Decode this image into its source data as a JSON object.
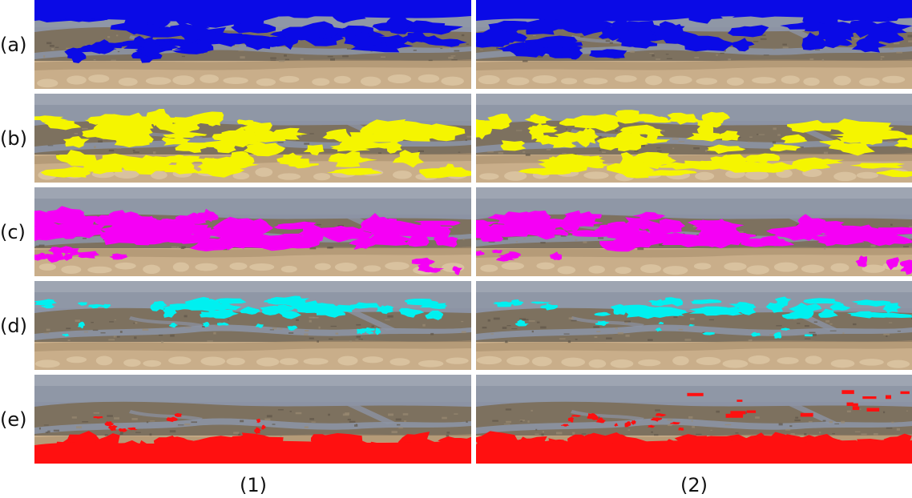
{
  "rows": [
    {
      "label": "(a)",
      "overlay_color": "#0a0ae6"
    },
    {
      "label": "(b)",
      "overlay_color": "#f5f500"
    },
    {
      "label": "(c)",
      "overlay_color": "#f500f5"
    },
    {
      "label": "(d)",
      "overlay_color": "#00f0f0"
    },
    {
      "label": "(e)",
      "overlay_color": "#ff1010"
    }
  ],
  "columns": [
    {
      "label": "(1)"
    },
    {
      "label": "(2)"
    }
  ],
  "palette": {
    "sky": "#8f97a6",
    "sky_light": "#a9afbb",
    "water": "#8c93a4",
    "mud": "#7d715f",
    "sand": "#c9ae8a",
    "sand_dark": "#a88e6d",
    "beach_light": "#e0cba8"
  }
}
